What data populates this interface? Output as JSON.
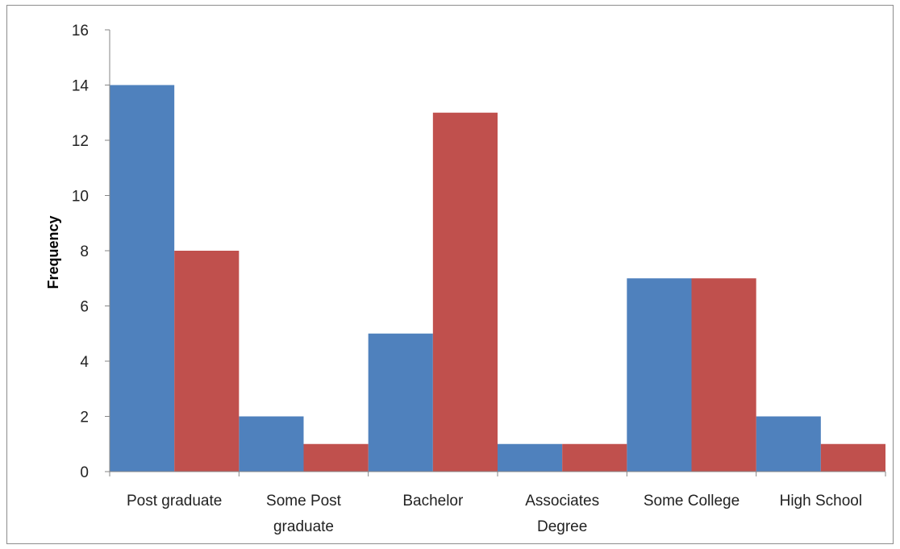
{
  "chart_data": {
    "type": "bar",
    "title": "",
    "xlabel": "",
    "ylabel": "Frequency",
    "ylim": [
      0,
      16
    ],
    "yticks": [
      0,
      2,
      4,
      6,
      8,
      10,
      12,
      14,
      16
    ],
    "grid": false,
    "legend": "none",
    "categories": [
      [
        "Post graduate"
      ],
      [
        "Some Post",
        "graduate"
      ],
      [
        "Bachelor"
      ],
      [
        "Associates",
        "Degree"
      ],
      [
        "Some College"
      ],
      [
        "High School"
      ]
    ],
    "series": [
      {
        "color": "#4f81bd",
        "values": [
          14,
          2,
          5,
          1,
          7,
          2
        ]
      },
      {
        "color": "#c0504d",
        "values": [
          8,
          1,
          13,
          1,
          7,
          1
        ]
      }
    ]
  }
}
